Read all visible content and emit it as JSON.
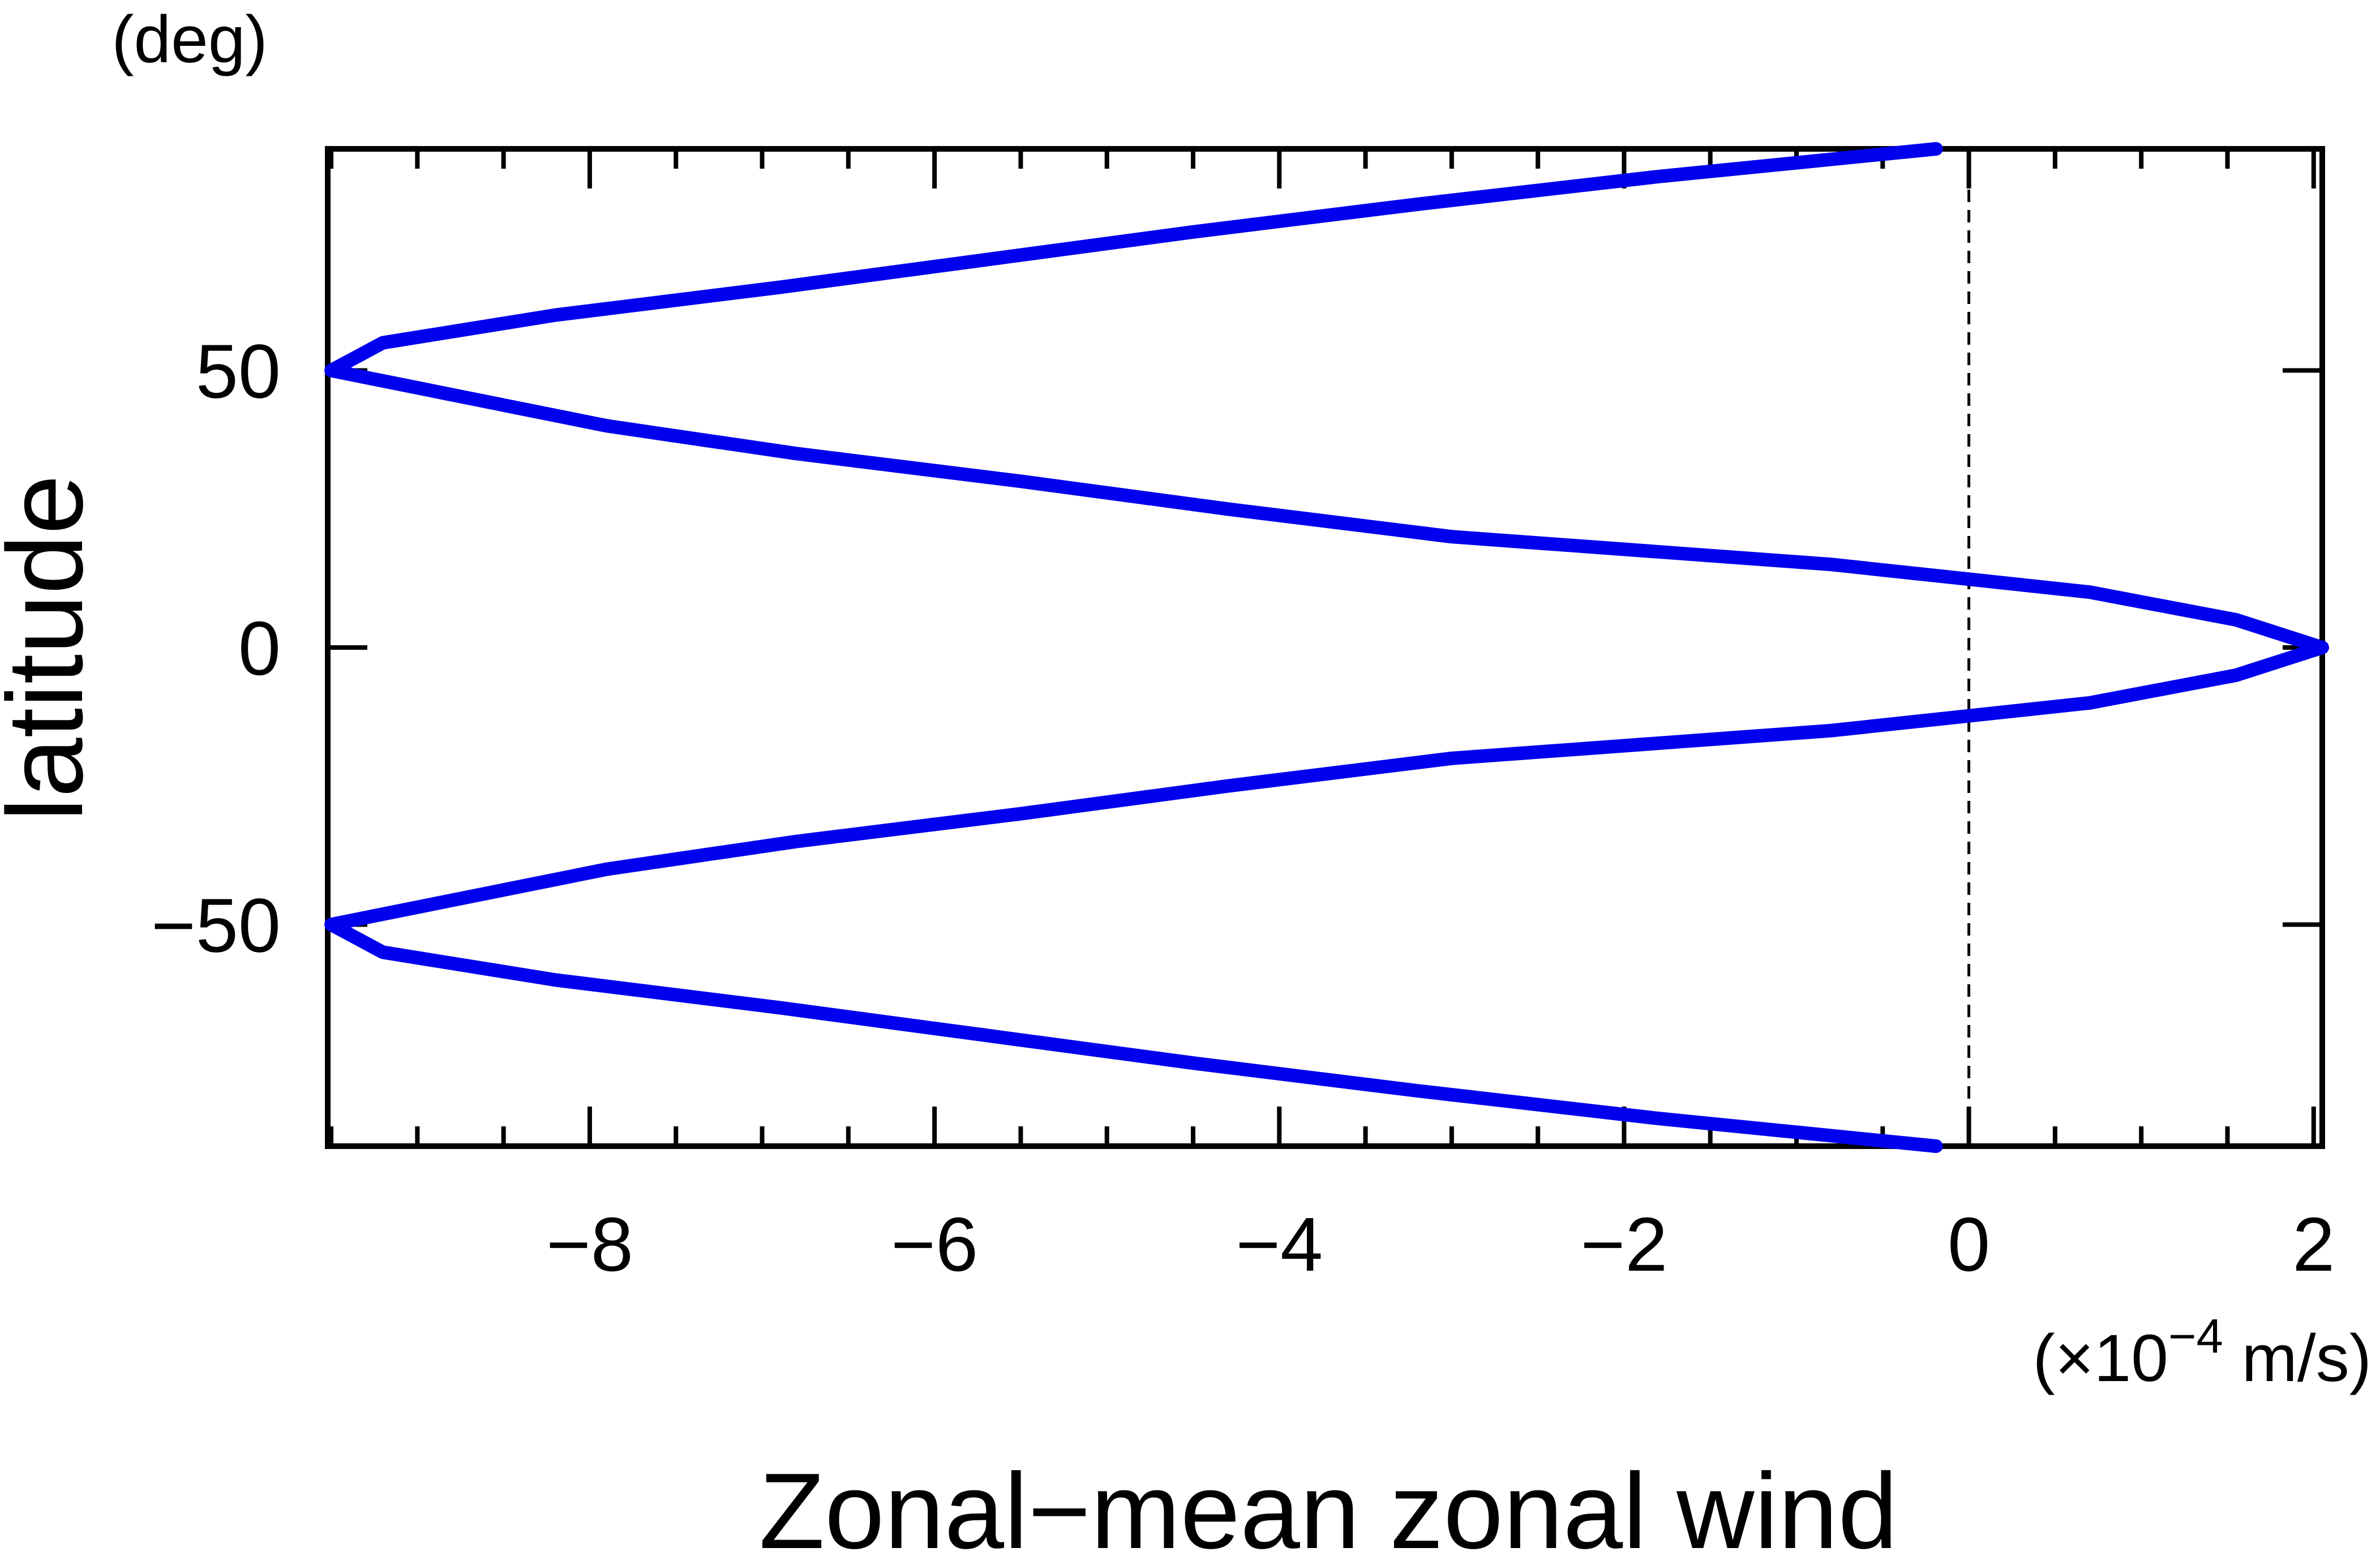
{
  "chart_data": {
    "type": "line",
    "y_label": "latitude",
    "y_unit": "(deg)",
    "x_label": "Zonal−mean zonal wind",
    "x_unit": {
      "prefix": "(×10",
      "exponent": "−4",
      "suffix": " m/s)"
    },
    "color": "#0000ee",
    "x": [
      -0.19,
      -1.8,
      -3.2,
      -4.5,
      -5.7,
      -6.9,
      -8.2,
      -9.2,
      -9.5,
      -8.7,
      -7.9,
      -6.8,
      -5.5,
      -4.3,
      -3.0,
      -0.8,
      0.7,
      1.55,
      2.05,
      1.55,
      0.7,
      -0.8,
      -3.0,
      -4.3,
      -5.5,
      -6.8,
      -7.9,
      -8.7,
      -9.5,
      -9.2,
      -8.2,
      -6.9,
      -5.7,
      -4.5,
      -3.2,
      -1.8,
      -0.19
    ],
    "values": [
      90,
      85,
      80,
      75,
      70,
      65,
      60,
      55,
      50,
      45,
      40,
      35,
      30,
      25,
      20,
      15,
      10,
      5,
      0,
      -5,
      -10,
      -15,
      -20,
      -25,
      -30,
      -35,
      -40,
      -45,
      -50,
      -55,
      -60,
      -65,
      -70,
      -75,
      -80,
      -85,
      -90
    ],
    "xlim": [
      -9.52,
      2.05
    ],
    "ylim": [
      -90,
      90
    ],
    "xticks": [
      {
        "value": -8,
        "label": "−8"
      },
      {
        "value": -6,
        "label": "−6"
      },
      {
        "value": -4,
        "label": "−4"
      },
      {
        "value": -2,
        "label": "−2"
      },
      0,
      2
    ],
    "xminorticks": [
      -9.5,
      -9,
      -8.5,
      -7.5,
      -7,
      -6.5,
      -5.5,
      -5,
      -4.5,
      -3.5,
      -3,
      -2.5,
      -1.5,
      -1,
      -0.5,
      0.5,
      1,
      1.5
    ],
    "yticks": [
      50,
      0,
      {
        "value": -50,
        "label": "−50"
      }
    ],
    "vline": 0
  }
}
